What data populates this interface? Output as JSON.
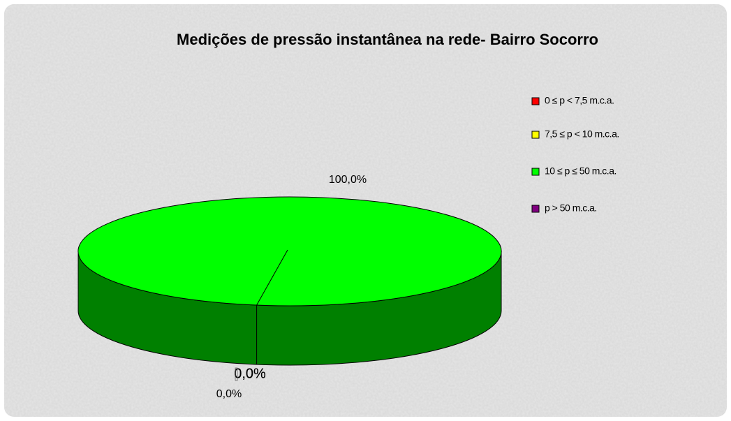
{
  "chart_data": {
    "type": "pie3d",
    "title": "Medições de pressão instantânea na rede- Bairro Socorro",
    "categories": [
      "0 ≤ p < 7,5 m.c.a.",
      "7,5 ≤ p < 10 m.c.a.",
      "10 ≤ p ≤ 50 m.c.a.",
      "p > 50 m.c.a."
    ],
    "values": [
      0,
      0,
      100,
      0
    ],
    "value_labels": [
      "0,0%",
      "0,0%",
      "100,0%",
      "0,0%"
    ],
    "colors": [
      "#ff0000",
      "#ffff00",
      "#00ff00",
      "#800080"
    ],
    "legend": "right"
  }
}
